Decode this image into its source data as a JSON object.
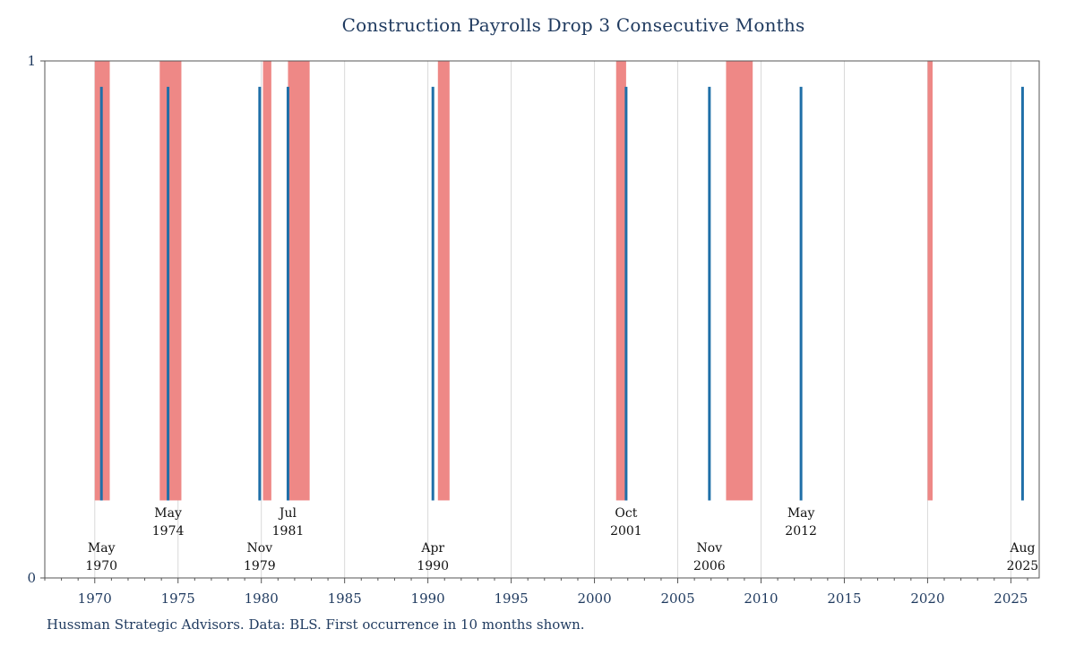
{
  "chart_data": {
    "type": "bar",
    "title": "Construction Payrolls Drop 3 Consecutive Months",
    "footnote": "Hussman Strategic Advisors. Data: BLS. First occurrence in 10 months shown.",
    "xlim": [
      1967.0,
      2026.7
    ],
    "ylim": [
      0,
      1
    ],
    "x_ticks": [
      1970,
      1975,
      1980,
      1985,
      1990,
      1995,
      2000,
      2005,
      2010,
      2015,
      2020,
      2025
    ],
    "y_ticks": [
      0,
      1
    ],
    "grid": "vertical",
    "colors": {
      "signal": "#1f6fa8",
      "recession": "#ee8886",
      "axis": "#555555",
      "grid": "#d9d9d9",
      "text": "#1f3a5f"
    },
    "series": [
      {
        "type": "bar",
        "color": "#ee8886",
        "y_range": [
          0.15,
          1.0
        ],
        "values": [
          {
            "start": 1970.0,
            "end": 1970.9
          },
          {
            "start": 1973.9,
            "end": 1975.2
          },
          {
            "start": 1980.1,
            "end": 1980.6
          },
          {
            "start": 1981.6,
            "end": 1982.9
          },
          {
            "start": 1990.6,
            "end": 1991.3
          },
          {
            "start": 2001.3,
            "end": 2001.9
          },
          {
            "start": 2007.9,
            "end": 2009.5
          },
          {
            "start": 2020.0,
            "end": 2020.3
          }
        ]
      },
      {
        "type": "line",
        "color": "#1f6fa8",
        "y_range": [
          0.15,
          0.95
        ],
        "events": [
          {
            "x": 1970.4,
            "month": "May",
            "year": "1970",
            "row": "lower"
          },
          {
            "x": 1974.4,
            "month": "May",
            "year": "1974",
            "row": "upper"
          },
          {
            "x": 1979.9,
            "month": "Nov",
            "year": "1979",
            "row": "lower"
          },
          {
            "x": 1981.6,
            "month": "Jul",
            "year": "1981",
            "row": "upper"
          },
          {
            "x": 1990.3,
            "month": "Apr",
            "year": "1990",
            "row": "lower"
          },
          {
            "x": 2001.9,
            "month": "Oct",
            "year": "2001",
            "row": "upper"
          },
          {
            "x": 2006.9,
            "month": "Nov",
            "year": "2006",
            "row": "lower"
          },
          {
            "x": 2012.4,
            "month": "May",
            "year": "2012",
            "row": "upper"
          },
          {
            "x": 2025.7,
            "month": "Aug",
            "year": "2025",
            "row": "lower"
          }
        ]
      }
    ]
  }
}
